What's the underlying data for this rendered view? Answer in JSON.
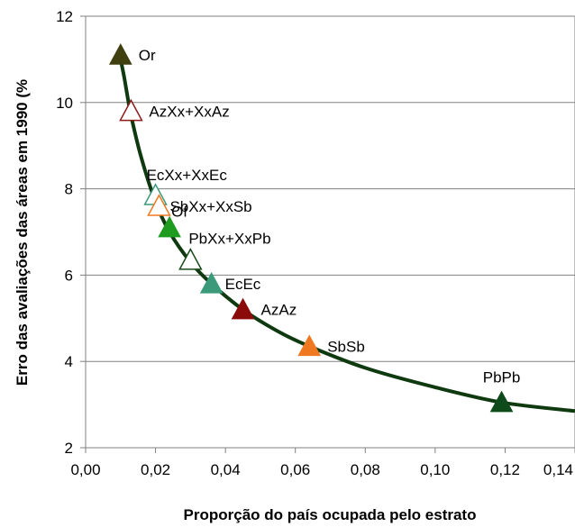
{
  "chart_data": {
    "type": "scatter",
    "xlabel": "Proporção do país ocupada pelo estrato",
    "ylabel": "Erro das avaliações das áreas em 1990 (%",
    "xlim": [
      0.0,
      0.14
    ],
    "ylim": [
      2,
      12
    ],
    "x_ticks": [
      "0,00",
      "0,02",
      "0,04",
      "0,06",
      "0,08",
      "0,10",
      "0,12",
      "0,14"
    ],
    "y_ticks": [
      "2",
      "4",
      "6",
      "8",
      "10",
      "12"
    ],
    "grid": "horizontal",
    "points": [
      {
        "label": "Or",
        "x": 0.01,
        "y": 11.1,
        "color": "#3f3f10",
        "filled": true
      },
      {
        "label": "AzXx+XxAz",
        "x": 0.013,
        "y": 9.8,
        "color": "#8b1a1a",
        "filled": false
      },
      {
        "label": "EcXx+XxEc",
        "x": 0.02,
        "y": 7.85,
        "color": "#3a9a7a",
        "filled": false
      },
      {
        "label": "SbXx+XxSb",
        "x": 0.021,
        "y": 7.6,
        "color": "#f07820",
        "filled": false
      },
      {
        "label": "Of",
        "x": 0.024,
        "y": 7.1,
        "color": "#1f9b20",
        "filled": true
      },
      {
        "label": "PbXx+XxPb",
        "x": 0.03,
        "y": 6.35,
        "color": "#1a4a1a",
        "filled": false
      },
      {
        "label": "EcEc",
        "x": 0.036,
        "y": 5.8,
        "color": "#3a9a7a",
        "filled": true
      },
      {
        "label": "AzAz",
        "x": 0.045,
        "y": 5.2,
        "color": "#8b0a0a",
        "filled": true
      },
      {
        "label": "SbSb",
        "x": 0.064,
        "y": 4.35,
        "color": "#f07820",
        "filled": true
      },
      {
        "label": "PbPb",
        "x": 0.119,
        "y": 3.05,
        "color": "#0f4a1a",
        "filled": true
      }
    ],
    "curve": {
      "color": "#0f3a10",
      "x": [
        0.0095,
        0.011,
        0.013,
        0.016,
        0.02,
        0.024,
        0.03,
        0.036,
        0.045,
        0.055,
        0.064,
        0.08,
        0.1,
        0.119,
        0.14
      ],
      "y": [
        11.2,
        10.6,
        9.7,
        8.7,
        7.7,
        7.0,
        6.3,
        5.8,
        5.2,
        4.7,
        4.35,
        3.85,
        3.4,
        3.05,
        2.85
      ]
    }
  }
}
